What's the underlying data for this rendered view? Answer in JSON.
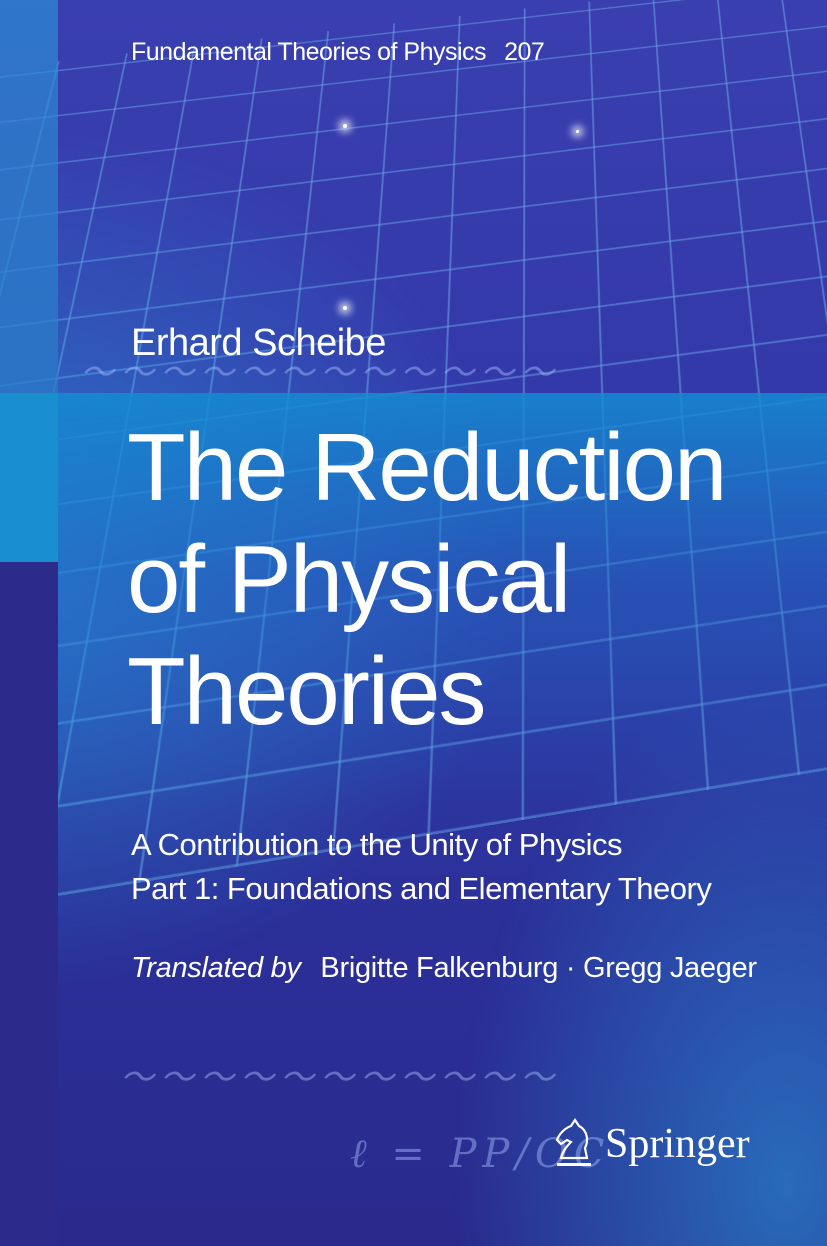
{
  "series": {
    "name": "Fundamental Theories of Physics",
    "number": "207"
  },
  "author": "Erhard Scheibe",
  "title_lines": [
    "The Reduction",
    "of Physical",
    "Theories"
  ],
  "subtitle_lines": [
    "A Contribution to the Unity of Physics",
    "Part 1: Foundations and Elementary Theory"
  ],
  "translators": {
    "label": "Translated by",
    "names": "Brigitte Falkenburg · Gregg Jaeger"
  },
  "publisher": {
    "name": "Springer",
    "icon": "knight-chess-piece-icon"
  },
  "colors": {
    "background": "#3439aa",
    "band": "#1a8fd0",
    "text": "#ffffff"
  }
}
